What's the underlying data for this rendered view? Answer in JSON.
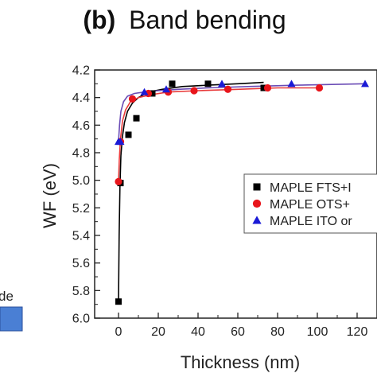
{
  "panel_label": "(b)",
  "title_text": "Band bending",
  "left_fragment_text": "de",
  "chart_data": {
    "type": "scatter",
    "title": "(b) Band bending",
    "xlabel": "Thickness (nm)",
    "ylabel": "WF (eV)",
    "xlim": [
      -12,
      130
    ],
    "ylim": [
      6.0,
      4.2
    ],
    "y_inverted": true,
    "xticks": [
      0,
      20,
      40,
      60,
      80,
      100,
      120
    ],
    "yticks": [
      4.2,
      4.4,
      4.6,
      4.8,
      5.0,
      5.2,
      5.4,
      5.6,
      5.8,
      6.0
    ],
    "grid": false,
    "legend_position": "right (clipped)",
    "series": [
      {
        "name": "MAPLE FTS+I",
        "marker": "square",
        "color": "#000000",
        "line_color": "#000000",
        "x": [
          0,
          1,
          5,
          9,
          17,
          27,
          45,
          73
        ],
        "y": [
          5.88,
          5.02,
          4.67,
          4.55,
          4.37,
          4.3,
          4.3,
          4.33
        ],
        "fit_x": [
          0,
          0.3,
          0.7,
          1.2,
          2,
          3,
          4.5,
          7,
          10,
          15,
          22,
          32,
          45,
          60,
          73
        ],
        "fit_y": [
          5.88,
          5.4,
          5.05,
          4.82,
          4.68,
          4.58,
          4.5,
          4.44,
          4.4,
          4.36,
          4.34,
          4.32,
          4.31,
          4.3,
          4.29
        ]
      },
      {
        "name": "MAPLE OTS+",
        "marker": "circle",
        "color": "#e8151b",
        "line_color": "#e83a3a",
        "x": [
          0,
          1,
          7,
          15,
          25,
          38,
          55,
          75,
          101
        ],
        "y": [
          5.01,
          4.72,
          4.41,
          4.37,
          4.36,
          4.35,
          4.34,
          4.33,
          4.33
        ],
        "fit_x": [
          0,
          0.4,
          1,
          2,
          3.5,
          6,
          10,
          16,
          25,
          40,
          60,
          80,
          101
        ],
        "fit_y": [
          5.01,
          4.85,
          4.7,
          4.57,
          4.49,
          4.43,
          4.4,
          4.38,
          4.36,
          4.35,
          4.34,
          4.33,
          4.33
        ]
      },
      {
        "name": "MAPLE ITO or",
        "marker": "triangle",
        "color": "#1a1ad6",
        "line_color": "#6a4bb5",
        "x": [
          0,
          1,
          13,
          24,
          52,
          87,
          124
        ],
        "y": [
          4.72,
          4.72,
          4.36,
          4.34,
          4.3,
          4.3,
          4.3
        ],
        "fit_x": [
          0,
          0.5,
          1.2,
          2.5,
          4.5,
          8,
          13,
          20,
          30,
          45,
          65,
          90,
          124
        ],
        "fit_y": [
          4.72,
          4.6,
          4.5,
          4.43,
          4.39,
          4.37,
          4.36,
          4.35,
          4.34,
          4.33,
          4.32,
          4.31,
          4.3
        ]
      }
    ]
  },
  "legend": {
    "items": [
      {
        "label": "MAPLE FTS+I",
        "marker": "square",
        "color": "#000000"
      },
      {
        "label": "MAPLE OTS+",
        "marker": "circle",
        "color": "#e8151b"
      },
      {
        "label": "MAPLE ITO or",
        "marker": "triangle",
        "color": "#1a1ad6"
      }
    ]
  },
  "left_panel_box_color": "#4a7fd4"
}
